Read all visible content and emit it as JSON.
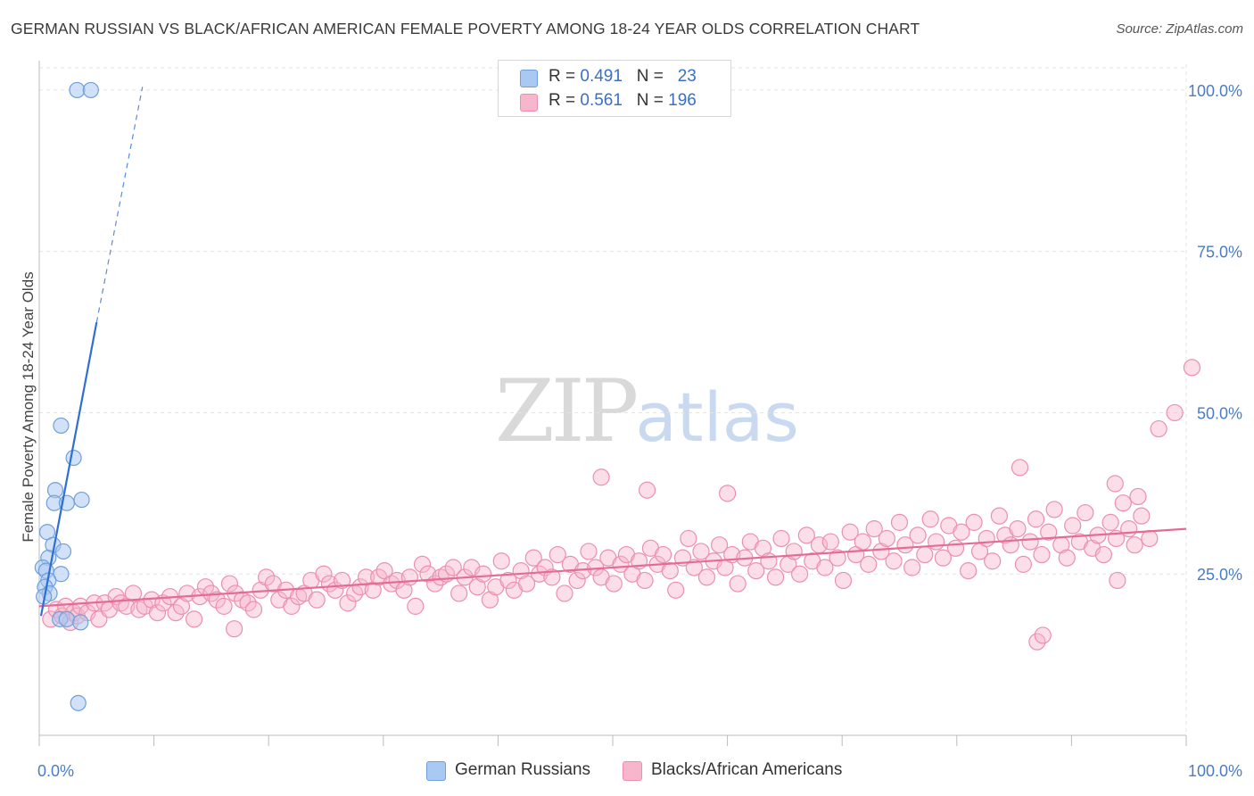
{
  "header": {
    "title": "GERMAN RUSSIAN VS BLACK/AFRICAN AMERICAN FEMALE POVERTY AMONG 18-24 YEAR OLDS CORRELATION CHART",
    "source": "Source: ZipAtlas.com"
  },
  "watermark": {
    "zip": "ZIP",
    "atlas": "atlas"
  },
  "legend": {
    "r_label": "R =",
    "n_label": "N =",
    "rows": [
      {
        "r": "0.491",
        "n": "23",
        "color": "#a9c8f2"
      },
      {
        "r": "0.561",
        "n": "196",
        "color": "#f7b6cb"
      }
    ]
  },
  "bottom_legend": [
    {
      "label": "German Russians",
      "color": "#a9c8f2"
    },
    {
      "label": "Blacks/African Americans",
      "color": "#f7b6cb"
    }
  ],
  "colors": {
    "blue_fill": "#a9c8f2",
    "blue_stroke": "#6f9fdc",
    "blue_line": "#2f6fd1",
    "pink_fill": "#f7b6cb",
    "pink_stroke": "#ec8fae",
    "pink_line": "#e36c97",
    "grid": "#e3e3e3",
    "axis": "#bbbbbb",
    "tick_text": "#4a7cc7"
  },
  "chart_data": {
    "type": "scatter",
    "title": "GERMAN RUSSIAN VS BLACK/AFRICAN AMERICAN FEMALE POVERTY AMONG 18-24 YEAR OLDS CORRELATION CHART",
    "xlabel": "",
    "ylabel": "Female Poverty Among 18-24 Year Olds",
    "xlim": [
      0,
      100
    ],
    "ylim": [
      0,
      104
    ],
    "x_ticks": [
      "0.0%",
      "100.0%"
    ],
    "y_ticks": [
      {
        "value": 25,
        "label": "25.0%"
      },
      {
        "value": 50,
        "label": "50.0%"
      },
      {
        "value": 75,
        "label": "75.0%"
      },
      {
        "value": 100,
        "label": "100.0%"
      }
    ],
    "grid": true,
    "series": [
      {
        "name": "German Russians",
        "R": 0.491,
        "N": 23,
        "trend": {
          "x0": 0.0,
          "y0": 18.5,
          "x1": 5.0,
          "y1": 64.0,
          "dash_to_x": 9.0,
          "dash_to_y": 100.5
        },
        "points": [
          [
            3.3,
            100.0
          ],
          [
            4.5,
            100.0
          ],
          [
            1.9,
            48.0
          ],
          [
            3.0,
            43.0
          ],
          [
            1.4,
            38.0
          ],
          [
            3.7,
            36.5
          ],
          [
            1.3,
            36.0
          ],
          [
            2.4,
            36.0
          ],
          [
            0.7,
            31.5
          ],
          [
            1.2,
            29.5
          ],
          [
            2.1,
            28.5
          ],
          [
            0.8,
            27.5
          ],
          [
            0.3,
            26.0
          ],
          [
            0.6,
            25.5
          ],
          [
            1.9,
            25.0
          ],
          [
            0.8,
            24.0
          ],
          [
            0.5,
            23.0
          ],
          [
            0.9,
            22.0
          ],
          [
            0.4,
            21.5
          ],
          [
            1.8,
            18.0
          ],
          [
            2.4,
            18.0
          ],
          [
            3.6,
            17.5
          ],
          [
            3.4,
            5.0
          ]
        ]
      },
      {
        "name": "Blacks/African Americans",
        "R": 0.561,
        "N": 196,
        "trend": {
          "x0": 0.0,
          "y0": 20.0,
          "x1": 100.0,
          "y1": 32.0
        },
        "points": [
          [
            1.0,
            18.0
          ],
          [
            1.5,
            19.5
          ],
          [
            2.0,
            18.5
          ],
          [
            2.3,
            20.0
          ],
          [
            2.7,
            17.5
          ],
          [
            3.0,
            19.0
          ],
          [
            3.3,
            18.5
          ],
          [
            3.6,
            20.0
          ],
          [
            4.2,
            19.0
          ],
          [
            4.8,
            20.5
          ],
          [
            5.2,
            18.0
          ],
          [
            5.7,
            20.5
          ],
          [
            6.1,
            19.5
          ],
          [
            6.7,
            21.5
          ],
          [
            7.1,
            20.5
          ],
          [
            7.6,
            20.0
          ],
          [
            8.2,
            22.0
          ],
          [
            8.7,
            19.5
          ],
          [
            9.2,
            20.0
          ],
          [
            9.8,
            21.0
          ],
          [
            10.3,
            19.0
          ],
          [
            10.8,
            20.5
          ],
          [
            11.4,
            21.5
          ],
          [
            11.9,
            19.0
          ],
          [
            12.4,
            20.0
          ],
          [
            12.9,
            22.0
          ],
          [
            13.5,
            18.0
          ],
          [
            14.0,
            21.5
          ],
          [
            14.5,
            23.0
          ],
          [
            15.0,
            22.0
          ],
          [
            15.5,
            21.0
          ],
          [
            16.1,
            20.0
          ],
          [
            16.6,
            23.5
          ],
          [
            17.1,
            22.0
          ],
          [
            17.7,
            21.0
          ],
          [
            18.2,
            20.5
          ],
          [
            18.7,
            19.5
          ],
          [
            19.3,
            22.5
          ],
          [
            19.8,
            24.5
          ],
          [
            20.4,
            23.5
          ],
          [
            20.9,
            21.0
          ],
          [
            21.5,
            22.5
          ],
          [
            22.0,
            20.0
          ],
          [
            22.6,
            21.5
          ],
          [
            23.1,
            22.0
          ],
          [
            23.7,
            24.0
          ],
          [
            24.2,
            21.0
          ],
          [
            24.8,
            25.0
          ],
          [
            25.3,
            23.5
          ],
          [
            25.8,
            22.5
          ],
          [
            26.4,
            24.0
          ],
          [
            26.9,
            20.5
          ],
          [
            27.5,
            22.0
          ],
          [
            28.0,
            23.0
          ],
          [
            28.5,
            24.5
          ],
          [
            29.1,
            22.5
          ],
          [
            29.6,
            24.5
          ],
          [
            30.1,
            25.5
          ],
          [
            30.7,
            23.5
          ],
          [
            31.2,
            24.0
          ],
          [
            31.8,
            22.5
          ],
          [
            32.3,
            24.5
          ],
          [
            32.8,
            20.0
          ],
          [
            33.4,
            26.5
          ],
          [
            33.9,
            25.0
          ],
          [
            34.5,
            23.5
          ],
          [
            35.0,
            24.5
          ],
          [
            35.5,
            25.0
          ],
          [
            36.1,
            26.0
          ],
          [
            36.6,
            22.0
          ],
          [
            37.1,
            24.5
          ],
          [
            37.7,
            26.0
          ],
          [
            38.2,
            23.0
          ],
          [
            38.7,
            25.0
          ],
          [
            39.3,
            21.0
          ],
          [
            39.8,
            23.0
          ],
          [
            40.3,
            27.0
          ],
          [
            40.9,
            24.0
          ],
          [
            41.4,
            22.5
          ],
          [
            42.0,
            25.5
          ],
          [
            42.5,
            23.5
          ],
          [
            43.1,
            27.5
          ],
          [
            43.6,
            25.0
          ],
          [
            44.1,
            26.0
          ],
          [
            44.7,
            24.5
          ],
          [
            45.2,
            28.0
          ],
          [
            45.8,
            22.0
          ],
          [
            46.3,
            26.5
          ],
          [
            46.9,
            24.0
          ],
          [
            47.4,
            25.5
          ],
          [
            47.9,
            28.5
          ],
          [
            48.5,
            26.0
          ],
          [
            49.0,
            24.5
          ],
          [
            49.6,
            27.5
          ],
          [
            50.1,
            23.5
          ],
          [
            50.7,
            26.5
          ],
          [
            51.2,
            28.0
          ],
          [
            51.7,
            25.0
          ],
          [
            52.3,
            27.0
          ],
          [
            52.8,
            24.0
          ],
          [
            53.3,
            29.0
          ],
          [
            53.9,
            26.5
          ],
          [
            54.4,
            28.0
          ],
          [
            55.0,
            25.5
          ],
          [
            55.5,
            22.5
          ],
          [
            56.1,
            27.5
          ],
          [
            56.6,
            30.5
          ],
          [
            57.1,
            26.0
          ],
          [
            57.7,
            28.5
          ],
          [
            58.2,
            24.5
          ],
          [
            58.8,
            27.0
          ],
          [
            59.3,
            29.5
          ],
          [
            59.8,
            26.0
          ],
          [
            60.4,
            28.0
          ],
          [
            60.9,
            23.5
          ],
          [
            61.5,
            27.5
          ],
          [
            62.0,
            30.0
          ],
          [
            62.5,
            25.5
          ],
          [
            63.1,
            29.0
          ],
          [
            63.6,
            27.0
          ],
          [
            64.2,
            24.5
          ],
          [
            64.7,
            30.5
          ],
          [
            65.3,
            26.5
          ],
          [
            65.8,
            28.5
          ],
          [
            66.3,
            25.0
          ],
          [
            66.9,
            31.0
          ],
          [
            67.4,
            27.0
          ],
          [
            68.0,
            29.5
          ],
          [
            68.5,
            26.0
          ],
          [
            69.0,
            30.0
          ],
          [
            69.6,
            27.5
          ],
          [
            70.1,
            24.0
          ],
          [
            70.7,
            31.5
          ],
          [
            71.2,
            28.0
          ],
          [
            71.8,
            30.0
          ],
          [
            72.3,
            26.5
          ],
          [
            72.8,
            32.0
          ],
          [
            73.4,
            28.5
          ],
          [
            73.9,
            30.5
          ],
          [
            74.5,
            27.0
          ],
          [
            75.0,
            33.0
          ],
          [
            75.5,
            29.5
          ],
          [
            76.1,
            26.0
          ],
          [
            76.6,
            31.0
          ],
          [
            77.2,
            28.0
          ],
          [
            77.7,
            33.5
          ],
          [
            78.2,
            30.0
          ],
          [
            78.8,
            27.5
          ],
          [
            79.3,
            32.5
          ],
          [
            79.9,
            29.0
          ],
          [
            80.4,
            31.5
          ],
          [
            81.0,
            25.5
          ],
          [
            81.5,
            33.0
          ],
          [
            82.0,
            28.5
          ],
          [
            82.6,
            30.5
          ],
          [
            83.1,
            27.0
          ],
          [
            83.7,
            34.0
          ],
          [
            84.2,
            31.0
          ],
          [
            84.7,
            29.5
          ],
          [
            85.3,
            32.0
          ],
          [
            85.8,
            26.5
          ],
          [
            86.4,
            30.0
          ],
          [
            86.9,
            33.5
          ],
          [
            87.4,
            28.0
          ],
          [
            88.0,
            31.5
          ],
          [
            88.5,
            35.0
          ],
          [
            89.1,
            29.5
          ],
          [
            89.6,
            27.5
          ],
          [
            90.1,
            32.5
          ],
          [
            90.7,
            30.0
          ],
          [
            91.2,
            34.5
          ],
          [
            91.8,
            29.0
          ],
          [
            92.3,
            31.0
          ],
          [
            92.8,
            28.0
          ],
          [
            93.4,
            33.0
          ],
          [
            93.9,
            30.5
          ],
          [
            94.5,
            36.0
          ],
          [
            95.0,
            32.0
          ],
          [
            95.5,
            29.5
          ],
          [
            96.1,
            34.0
          ],
          [
            49.0,
            40.0
          ],
          [
            53.0,
            38.0
          ],
          [
            60.0,
            37.5
          ],
          [
            85.5,
            41.5
          ],
          [
            93.8,
            39.0
          ],
          [
            95.8,
            37.0
          ],
          [
            97.6,
            47.5
          ],
          [
            99.0,
            50.0
          ],
          [
            100.5,
            57.0
          ],
          [
            17.0,
            16.5
          ],
          [
            87.0,
            14.5
          ],
          [
            87.5,
            15.5
          ],
          [
            94.0,
            24.0
          ],
          [
            96.8,
            30.5
          ]
        ]
      }
    ]
  }
}
